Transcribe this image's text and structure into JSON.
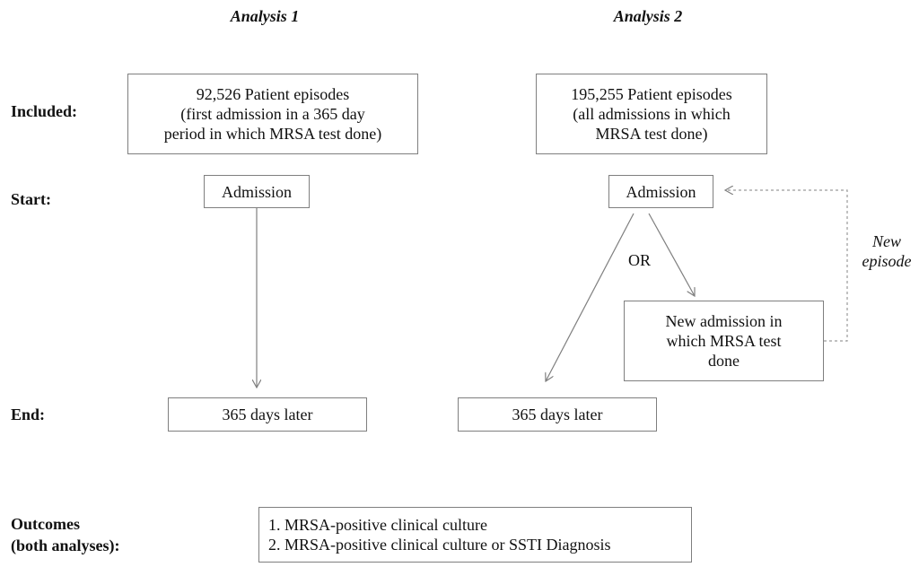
{
  "headings": {
    "analysis1": "Analysis 1",
    "analysis2": "Analysis 2"
  },
  "row_labels": {
    "included": "Included:",
    "start": "Start:",
    "end": "End:",
    "outcomes_line1": "Outcomes",
    "outcomes_line2": "(both analyses):"
  },
  "analysis1": {
    "included_lines": [
      "92,526  Patient episodes",
      "(first admission in a 365 day",
      "period in which MRSA test done)"
    ],
    "start": "Admission",
    "end": "365 days later"
  },
  "analysis2": {
    "included_lines": [
      "195,255  Patient episodes",
      "(all admissions in which",
      "MRSA test done)"
    ],
    "start": "Admission",
    "or_label": "OR",
    "new_admission_lines": [
      "New admission in",
      "which MRSA test",
      "done"
    ],
    "new_episode_lines": [
      "New",
      "episode"
    ],
    "end": "365 days later"
  },
  "outcomes": [
    "1. MRSA-positive clinical culture",
    "2. MRSA-positive clinical culture or SSTI Diagnosis"
  ]
}
